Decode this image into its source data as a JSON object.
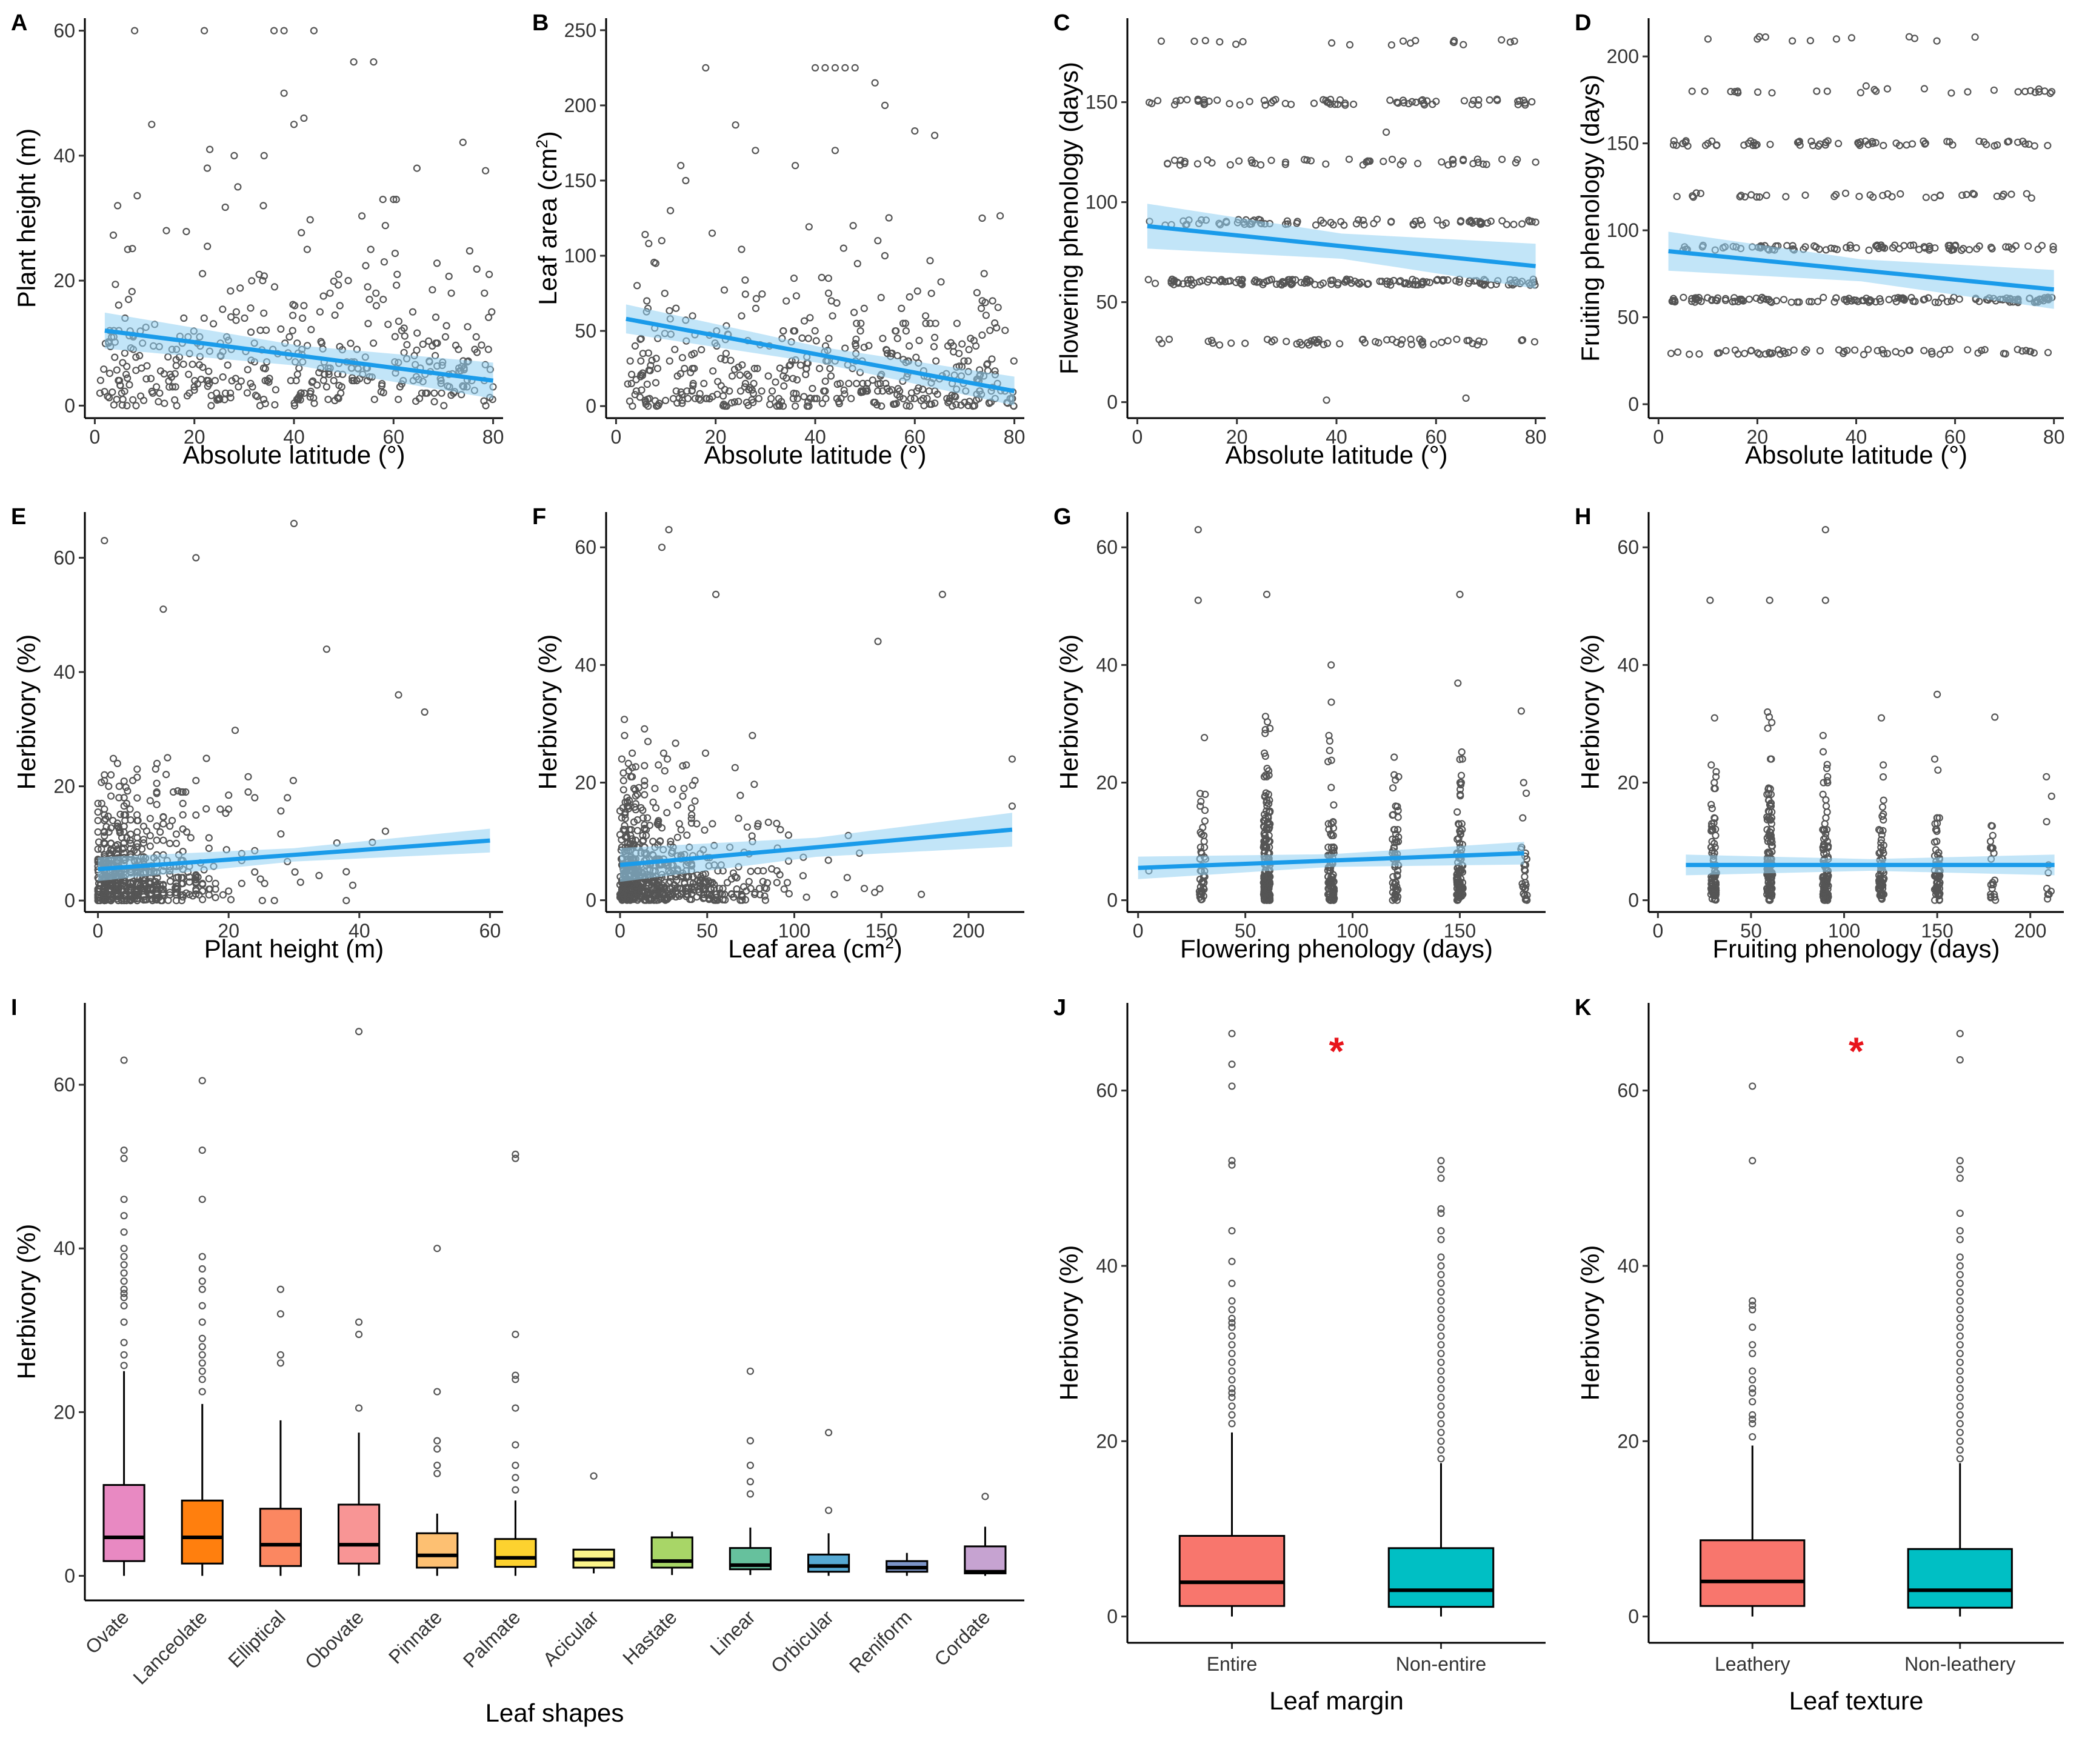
{
  "chart_data": [
    {
      "id": "A",
      "type": "scatter",
      "panel_label": "A",
      "xlabel": "Absolute latitude (°)",
      "ylabel": "Plant height (m)",
      "xlim": [
        -2,
        82
      ],
      "ylim": [
        -2,
        62
      ],
      "xticks": [
        0,
        20,
        40,
        60,
        80
      ],
      "yticks": [
        0,
        20,
        40,
        60
      ],
      "fit": {
        "x": [
          2,
          80
        ],
        "y": [
          12,
          4
        ],
        "se": 1.8
      },
      "seed": 11,
      "n": 430,
      "xrange": [
        1,
        80
      ],
      "ydist": "skew",
      "ymax": 60,
      "yscale": 9,
      "extra_points": [
        [
          8,
          60
        ],
        [
          22,
          60
        ],
        [
          36,
          60
        ],
        [
          38,
          60
        ],
        [
          44,
          60
        ],
        [
          52,
          55
        ],
        [
          56,
          55
        ],
        [
          38,
          50
        ],
        [
          40,
          45
        ],
        [
          42,
          46
        ],
        [
          34,
          40
        ],
        [
          60,
          33
        ],
        [
          28,
          40
        ]
      ]
    },
    {
      "id": "B",
      "type": "scatter",
      "panel_label": "B",
      "xlabel": "Absolute latitude (°)",
      "ylabel": "Leaf area (cm²)",
      "ylabel_main": "Leaf area (cm",
      "ylabel_sup": "2",
      "ylabel_end": ")",
      "xlim": [
        -2,
        82
      ],
      "ylim": [
        -8,
        258
      ],
      "xticks": [
        0,
        20,
        40,
        60,
        80
      ],
      "yticks": [
        0,
        50,
        100,
        150,
        200,
        250
      ],
      "fit": {
        "x": [
          2,
          80
        ],
        "y": [
          58,
          10
        ],
        "se": 6
      },
      "seed": 23,
      "n": 460,
      "xrange": [
        2,
        80
      ],
      "ydist": "skew",
      "ymax": 225,
      "yscale": 30,
      "extra_points": [
        [
          18,
          225
        ],
        [
          40,
          225
        ],
        [
          42,
          225
        ],
        [
          44,
          225
        ],
        [
          46,
          225
        ],
        [
          48,
          225
        ],
        [
          52,
          215
        ],
        [
          54,
          200
        ],
        [
          24,
          187
        ],
        [
          60,
          183
        ],
        [
          64,
          180
        ],
        [
          13,
          160
        ],
        [
          14,
          150
        ],
        [
          28,
          170
        ],
        [
          44,
          170
        ],
        [
          36,
          160
        ]
      ]
    },
    {
      "id": "C",
      "type": "scatter",
      "panel_label": "C",
      "xlabel": "Absolute latitude (°)",
      "ylabel": "Flowering phenology (days)",
      "xlim": [
        -2,
        82
      ],
      "ylim": [
        -8,
        192
      ],
      "xticks": [
        0,
        20,
        40,
        60,
        80
      ],
      "yticks": [
        0,
        50,
        100,
        150
      ],
      "fit": {
        "x": [
          2,
          80
        ],
        "y": [
          88,
          68
        ],
        "se": 7
      },
      "seed": 37,
      "n": 420,
      "xrange": [
        2,
        80
      ],
      "ydist": "levels",
      "levels": [
        30,
        60,
        90,
        120,
        150,
        180
      ],
      "weights": [
        2,
        6,
        3,
        2,
        3,
        1
      ],
      "extra_points": [
        [
          38,
          1
        ],
        [
          66,
          2
        ],
        [
          50,
          135
        ],
        [
          80,
          120
        ],
        [
          80,
          90
        ]
      ]
    },
    {
      "id": "D",
      "type": "scatter",
      "panel_label": "D",
      "xlabel": "Absolute latitude (°)",
      "ylabel": "Fruiting phenology (days)",
      "xlim": [
        -2,
        82
      ],
      "ylim": [
        -8,
        222
      ],
      "xticks": [
        0,
        20,
        40,
        60,
        80
      ],
      "yticks": [
        0,
        50,
        100,
        150,
        200
      ],
      "fit": {
        "x": [
          2,
          80
        ],
        "y": [
          88,
          66
        ],
        "se": 7
      },
      "seed": 41,
      "n": 420,
      "xrange": [
        2,
        80
      ],
      "ydist": "levels",
      "levels": [
        30,
        60,
        90,
        120,
        150,
        180,
        210
      ],
      "weights": [
        3,
        5,
        4,
        2,
        3,
        1,
        0.3
      ],
      "extra_points": [
        [
          10,
          210
        ],
        [
          20,
          210
        ],
        [
          36,
          210
        ],
        [
          16,
          180
        ],
        [
          32,
          180
        ],
        [
          42,
          183
        ],
        [
          44,
          180
        ]
      ]
    },
    {
      "id": "E",
      "type": "scatter",
      "panel_label": "E",
      "xlabel": "Plant height (m)",
      "ylabel": "Herbivory (%)",
      "xlim": [
        -2,
        62
      ],
      "ylim": [
        -2,
        68
      ],
      "xticks": [
        0,
        20,
        40,
        60
      ],
      "yticks": [
        0,
        20,
        40,
        60
      ],
      "fit": {
        "x": [
          0,
          60
        ],
        "y": [
          5.5,
          10.5
        ],
        "se": 1.3
      },
      "seed": 53,
      "n": 620,
      "xrange": [
        0,
        60
      ],
      "xdist": "skew",
      "xscale": 7,
      "ydist": "skew",
      "ymax": 66,
      "yscale": 6,
      "extra_points": [
        [
          1,
          63
        ],
        [
          15,
          60
        ],
        [
          30,
          66
        ],
        [
          10,
          51
        ],
        [
          35,
          44
        ],
        [
          46,
          36
        ],
        [
          50,
          33
        ]
      ]
    },
    {
      "id": "F",
      "type": "scatter",
      "panel_label": "F",
      "xlabel": "Leaf area (cm²)",
      "xlabel_main": "Leaf area (cm",
      "xlabel_sup": "2",
      "xlabel_end": ")",
      "ylabel": "Herbivory (%)",
      "xlim": [
        -8,
        232
      ],
      "ylim": [
        -2,
        66
      ],
      "xticks": [
        0,
        50,
        100,
        150,
        200
      ],
      "yticks": [
        0,
        20,
        40,
        60
      ],
      "fit": {
        "x": [
          0,
          225
        ],
        "y": [
          6,
          12
        ],
        "se": 1.8
      },
      "seed": 67,
      "n": 640,
      "xrange": [
        0,
        225
      ],
      "xdist": "skew",
      "xscale": 28,
      "ydist": "skew",
      "ymax": 63,
      "yscale": 6,
      "extra_points": [
        [
          28,
          63
        ],
        [
          24,
          60
        ],
        [
          55,
          52
        ],
        [
          185,
          52
        ],
        [
          148,
          44
        ],
        [
          225,
          24
        ],
        [
          225,
          16
        ]
      ]
    },
    {
      "id": "G",
      "type": "scatter",
      "panel_label": "G",
      "xlabel": "Flowering phenology (days)",
      "ylabel": "Herbivory (%)",
      "xlim": [
        -5,
        190
      ],
      "ylim": [
        -2,
        66
      ],
      "xticks": [
        0,
        50,
        100,
        150
      ],
      "yticks": [
        0,
        20,
        40,
        60
      ],
      "fit": {
        "x": [
          0,
          180
        ],
        "y": [
          5.5,
          8
        ],
        "se": 1.2
      },
      "seed": 79,
      "n": 520,
      "xdist": "levels",
      "xlevels": [
        30,
        60,
        90,
        120,
        150,
        180
      ],
      "xweights": [
        2,
        6,
        3,
        2,
        3,
        1
      ],
      "ydist": "skew",
      "ymax": 63,
      "yscale": 7,
      "extra_points": [
        [
          28,
          63
        ],
        [
          60,
          52
        ],
        [
          150,
          52
        ],
        [
          28,
          51
        ],
        [
          90,
          40
        ],
        [
          5,
          5
        ]
      ]
    },
    {
      "id": "H",
      "type": "scatter",
      "panel_label": "H",
      "xlabel": "Fruiting phenology (days)",
      "ylabel": "Herbivory (%)",
      "xlim": [
        -5,
        218
      ],
      "ylim": [
        -2,
        66
      ],
      "xticks": [
        0,
        50,
        100,
        150,
        200
      ],
      "yticks": [
        0,
        20,
        40,
        60
      ],
      "fit": {
        "x": [
          15,
          213
        ],
        "y": [
          6,
          6
        ],
        "se": 1.1
      },
      "seed": 91,
      "n": 500,
      "xdist": "levels",
      "xlevels": [
        30,
        60,
        90,
        120,
        150,
        180,
        210
      ],
      "xweights": [
        3,
        5,
        4,
        2,
        3,
        1,
        0.5
      ],
      "ydist": "skew",
      "ymax": 63,
      "yscale": 7,
      "extra_points": [
        [
          90,
          63
        ],
        [
          60,
          51
        ],
        [
          28,
          51
        ],
        [
          90,
          51
        ],
        [
          150,
          35
        ],
        [
          120,
          31
        ]
      ]
    },
    {
      "id": "I",
      "type": "box",
      "panel_label": "I",
      "xlabel": "Leaf shapes",
      "ylabel": "Herbivory (%)",
      "ylim": [
        -3,
        70
      ],
      "yticks": [
        0,
        20,
        40,
        60
      ],
      "categories": [
        "Ovate",
        "Lanceolate",
        "Elliptical",
        "Obovate",
        "Pinnate",
        "Palmate",
        "Acicular",
        "Hastate",
        "Linear",
        "Orbicular",
        "Reniform",
        "Cordate"
      ],
      "colors": [
        "#e889c2",
        "#ff7f0e",
        "#fb8761",
        "#f89595",
        "#fdc072",
        "#fdd22f",
        "#fbf48a",
        "#a8d667",
        "#66c19d",
        "#56a9d3",
        "#7c94c8",
        "#c6a3d1"
      ],
      "boxes": [
        {
          "q1": 1.8,
          "med": 4.7,
          "q3": 11.1,
          "lo": 0,
          "hi": 25,
          "out": [
            25.7,
            27,
            28.5,
            31,
            33,
            34,
            34.5,
            35,
            36,
            37,
            38,
            39,
            40,
            42,
            44,
            46,
            51,
            52,
            63
          ]
        },
        {
          "q1": 1.5,
          "med": 4.7,
          "q3": 9.2,
          "lo": 0,
          "hi": 21,
          "out": [
            22.5,
            24,
            25,
            26,
            27,
            28,
            29,
            31,
            33,
            35,
            36,
            37.5,
            39,
            46,
            52,
            60.5
          ]
        },
        {
          "q1": 1.2,
          "med": 3.8,
          "q3": 8.2,
          "lo": 0,
          "hi": 19,
          "out": [
            26,
            27,
            32,
            35
          ]
        },
        {
          "q1": 1.5,
          "med": 3.8,
          "q3": 8.7,
          "lo": 0,
          "hi": 17.5,
          "out": [
            20.5,
            29.5,
            31,
            66.5
          ]
        },
        {
          "q1": 1.0,
          "med": 2.5,
          "q3": 5.2,
          "lo": 0,
          "hi": 7.6,
          "out": [
            12.5,
            13.5,
            15.5,
            16.5,
            22.5,
            40
          ]
        },
        {
          "q1": 1.1,
          "med": 2.2,
          "q3": 4.5,
          "lo": 0,
          "hi": 9.2,
          "out": [
            10.5,
            12,
            13.5,
            16,
            20.5,
            24,
            24.5,
            29.5,
            51,
            51.5
          ]
        },
        {
          "q1": 1.0,
          "med": 2.0,
          "q3": 3.2,
          "lo": 0.3,
          "hi": 3.2,
          "out": [
            12.2
          ]
        },
        {
          "q1": 1.0,
          "med": 1.8,
          "q3": 4.7,
          "lo": 0.1,
          "hi": 5.4,
          "out": []
        },
        {
          "q1": 0.8,
          "med": 1.3,
          "q3": 3.4,
          "lo": 0.1,
          "hi": 5.9,
          "out": [
            10,
            11.5,
            13.5,
            16.5,
            25
          ]
        },
        {
          "q1": 0.5,
          "med": 1.2,
          "q3": 2.6,
          "lo": 0,
          "hi": 5.2,
          "out": [
            8,
            17.5
          ]
        },
        {
          "q1": 0.5,
          "med": 1.0,
          "q3": 1.8,
          "lo": 0,
          "hi": 2.8,
          "out": []
        },
        {
          "q1": 0.3,
          "med": 0.5,
          "q3": 3.6,
          "lo": 0,
          "hi": 6,
          "out": [
            9.7
          ]
        }
      ]
    },
    {
      "id": "J",
      "type": "box",
      "panel_label": "J",
      "xlabel": "Leaf margin",
      "ylabel": "Herbivory (%)",
      "ylim": [
        -3,
        70
      ],
      "yticks": [
        0,
        20,
        40,
        60
      ],
      "categories": [
        "Entire",
        "Non-entire"
      ],
      "colors": [
        "#f8766d",
        "#00bfc4"
      ],
      "significance": "*",
      "boxes": [
        {
          "q1": 1.2,
          "med": 3.9,
          "q3": 9.2,
          "lo": 0,
          "hi": 21,
          "out": [
            22,
            23,
            24,
            25,
            25.5,
            26,
            27,
            28,
            29,
            30,
            31,
            32,
            33,
            33.5,
            34,
            35,
            36,
            38,
            40.5,
            44,
            51.5,
            52,
            60.5,
            63,
            66.5
          ]
        },
        {
          "q1": 1.1,
          "med": 3.0,
          "q3": 7.8,
          "lo": 0,
          "hi": 17.5,
          "out": [
            18,
            19,
            20,
            21,
            22,
            23,
            24,
            25,
            26,
            27,
            28,
            29,
            30,
            31,
            32,
            33,
            34,
            35,
            36,
            37,
            38,
            39,
            40,
            41,
            43,
            44,
            46,
            46.5,
            50,
            51,
            52
          ]
        }
      ]
    },
    {
      "id": "K",
      "type": "box",
      "panel_label": "K",
      "xlabel": "Leaf texture",
      "ylabel": "Herbivory (%)",
      "ylim": [
        -3,
        70
      ],
      "yticks": [
        0,
        20,
        40,
        60
      ],
      "categories": [
        "Leathery",
        "Non-leathery"
      ],
      "colors": [
        "#f8766d",
        "#00bfc4"
      ],
      "significance": "*",
      "boxes": [
        {
          "q1": 1.2,
          "med": 4.0,
          "q3": 8.7,
          "lo": 0,
          "hi": 19.5,
          "out": [
            20.5,
            22,
            22.5,
            23,
            24.5,
            25.5,
            26,
            27,
            28,
            30,
            31,
            33,
            35,
            35.5,
            36,
            52,
            60.5
          ]
        },
        {
          "q1": 1.0,
          "med": 3.0,
          "q3": 7.7,
          "lo": 0,
          "hi": 17.5,
          "out": [
            18,
            19,
            20,
            21,
            22,
            23,
            24,
            25,
            26,
            27,
            28,
            29,
            30,
            31,
            32,
            33,
            34,
            35,
            36,
            37,
            38,
            39,
            40,
            41,
            43,
            44,
            46,
            50,
            51,
            52,
            63.5,
            66.5
          ]
        }
      ]
    }
  ]
}
